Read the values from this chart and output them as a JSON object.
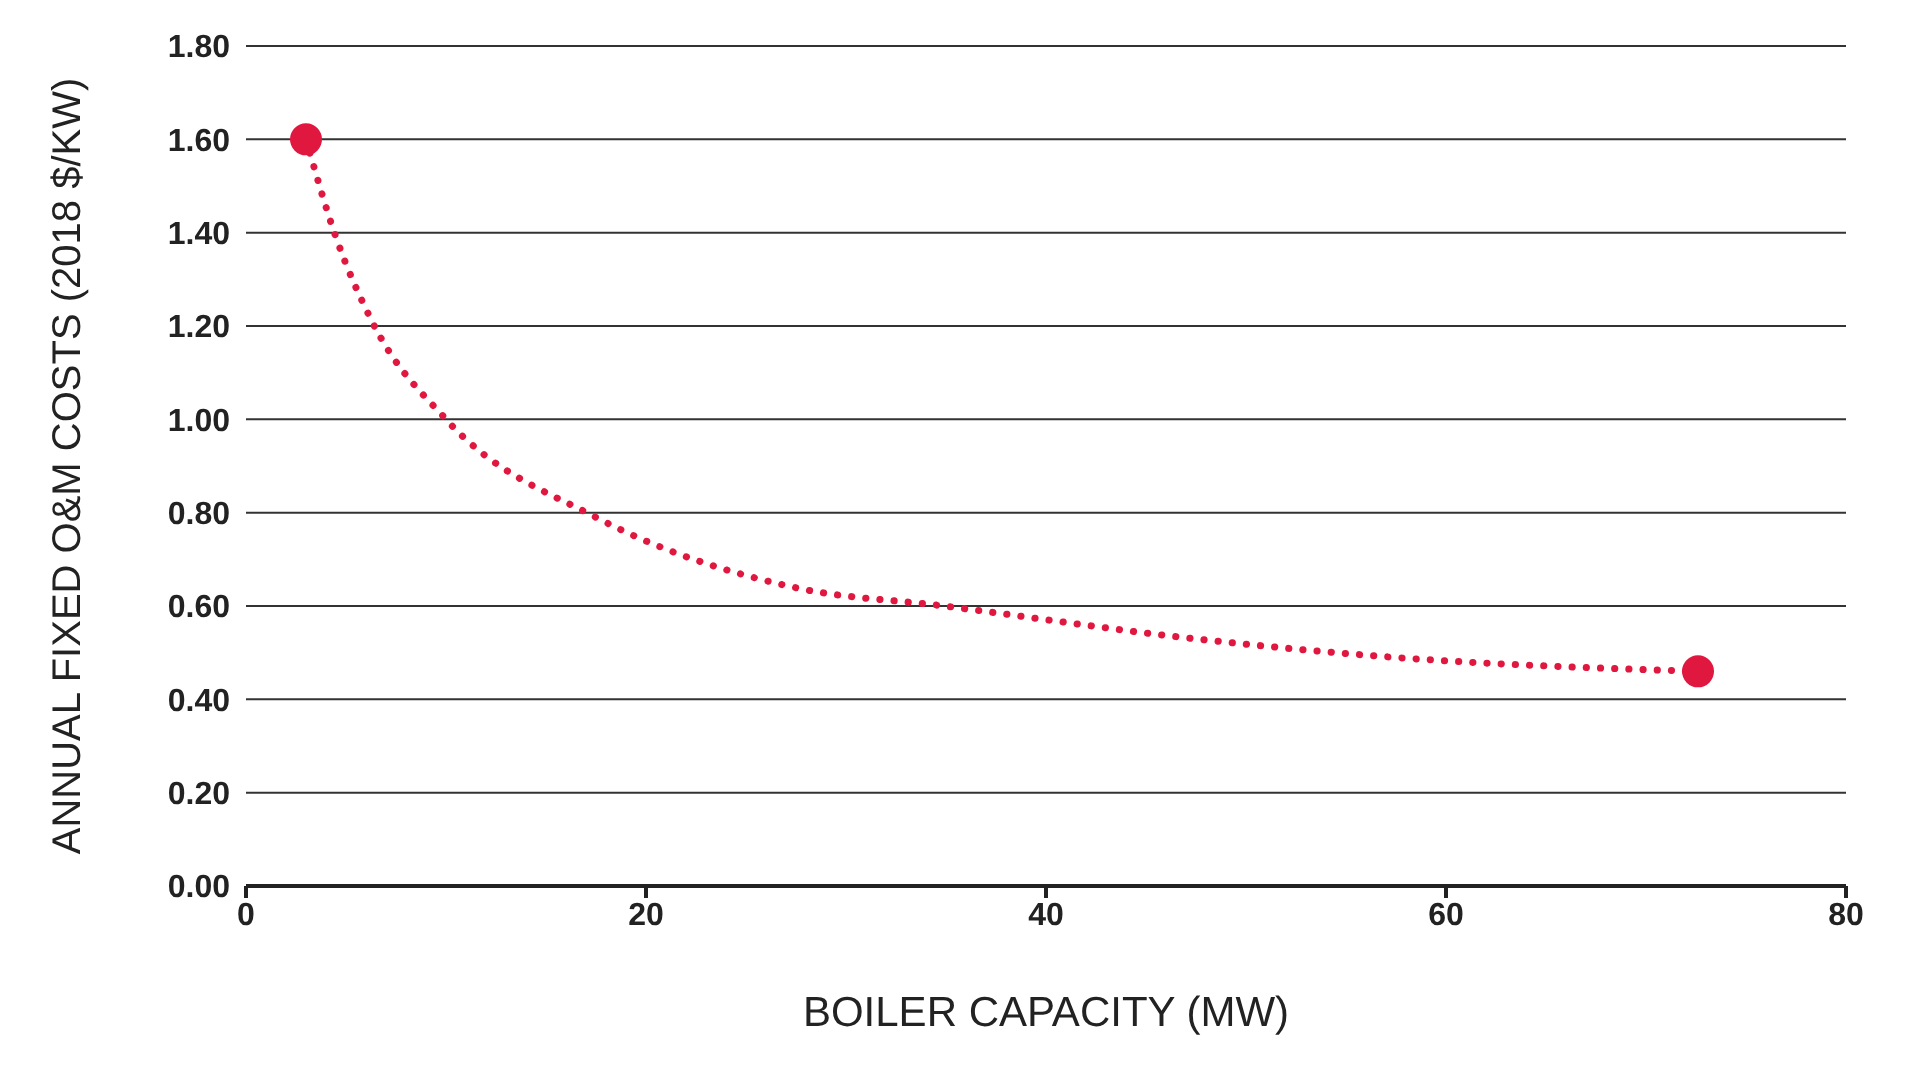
{
  "chart_data": {
    "type": "line",
    "xlabel": "BOILER CAPACITY (MW)",
    "ylabel": "ANNUAL FIXED O&M COSTS (2018 $/KW)",
    "series": [
      {
        "color": "#e0173f",
        "line_style": "dotted",
        "marker": "none",
        "x": [
          3,
          4.5,
          6.3,
          10,
          17.5,
          27.4,
          34.9,
          47.4,
          57.4,
          72.6
        ],
        "values": [
          1.6,
          1.39,
          1.21,
          1.0,
          0.79,
          0.64,
          0.6,
          0.53,
          0.49,
          0.46
        ]
      },
      {
        "type": "scatter",
        "color": "#e0173f",
        "marker": "circle",
        "x": [
          3,
          72.6
        ],
        "values": [
          1.6,
          0.46
        ]
      }
    ],
    "xlim": [
      0,
      80
    ],
    "xticks": [
      0,
      20,
      40,
      60,
      80
    ],
    "ylim": [
      0,
      1.8
    ],
    "yticks": [
      {
        "value": 0,
        "label": "0.00"
      },
      {
        "value": 0.2,
        "label": "0.20"
      },
      {
        "value": 0.4,
        "label": "0.40"
      },
      {
        "value": 0.6,
        "label": "0.60"
      },
      {
        "value": 0.8,
        "label": "0.80"
      },
      {
        "value": 1,
        "label": "1.00"
      },
      {
        "value": 1.2,
        "label": "1.20"
      },
      {
        "value": 1.4,
        "label": "1.40"
      },
      {
        "value": 1.6,
        "label": "1.60"
      },
      {
        "value": 1.8,
        "label": "1.80"
      }
    ],
    "grid": "y"
  }
}
